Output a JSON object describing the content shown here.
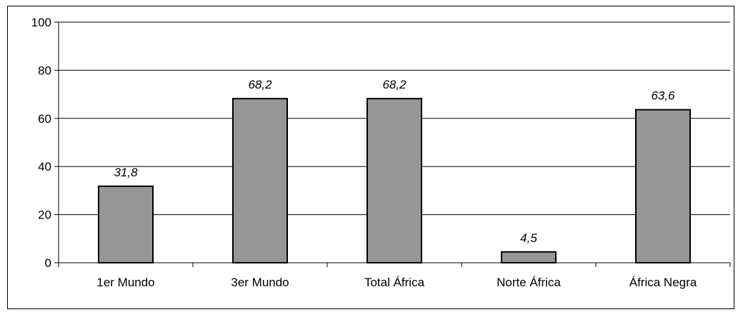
{
  "chart_data": {
    "type": "bar",
    "title": "",
    "xlabel": "",
    "ylabel": "",
    "categories": [
      "1er Mundo",
      "3er Mundo",
      "Total África",
      "Norte África",
      "África Negra"
    ],
    "values": [
      31.8,
      68.2,
      68.2,
      4.5,
      63.6
    ],
    "value_labels": [
      "31,8",
      "68,2",
      "68,2",
      "4,5",
      "63,6"
    ],
    "ylim": [
      0,
      100
    ],
    "yticks": [
      0,
      20,
      40,
      60,
      80,
      100
    ],
    "ytick_labels": [
      "0",
      "20",
      "40",
      "60",
      "80",
      "100"
    ],
    "grid": true,
    "bar_color": "#969696",
    "bar_edge_color": "#000000"
  }
}
